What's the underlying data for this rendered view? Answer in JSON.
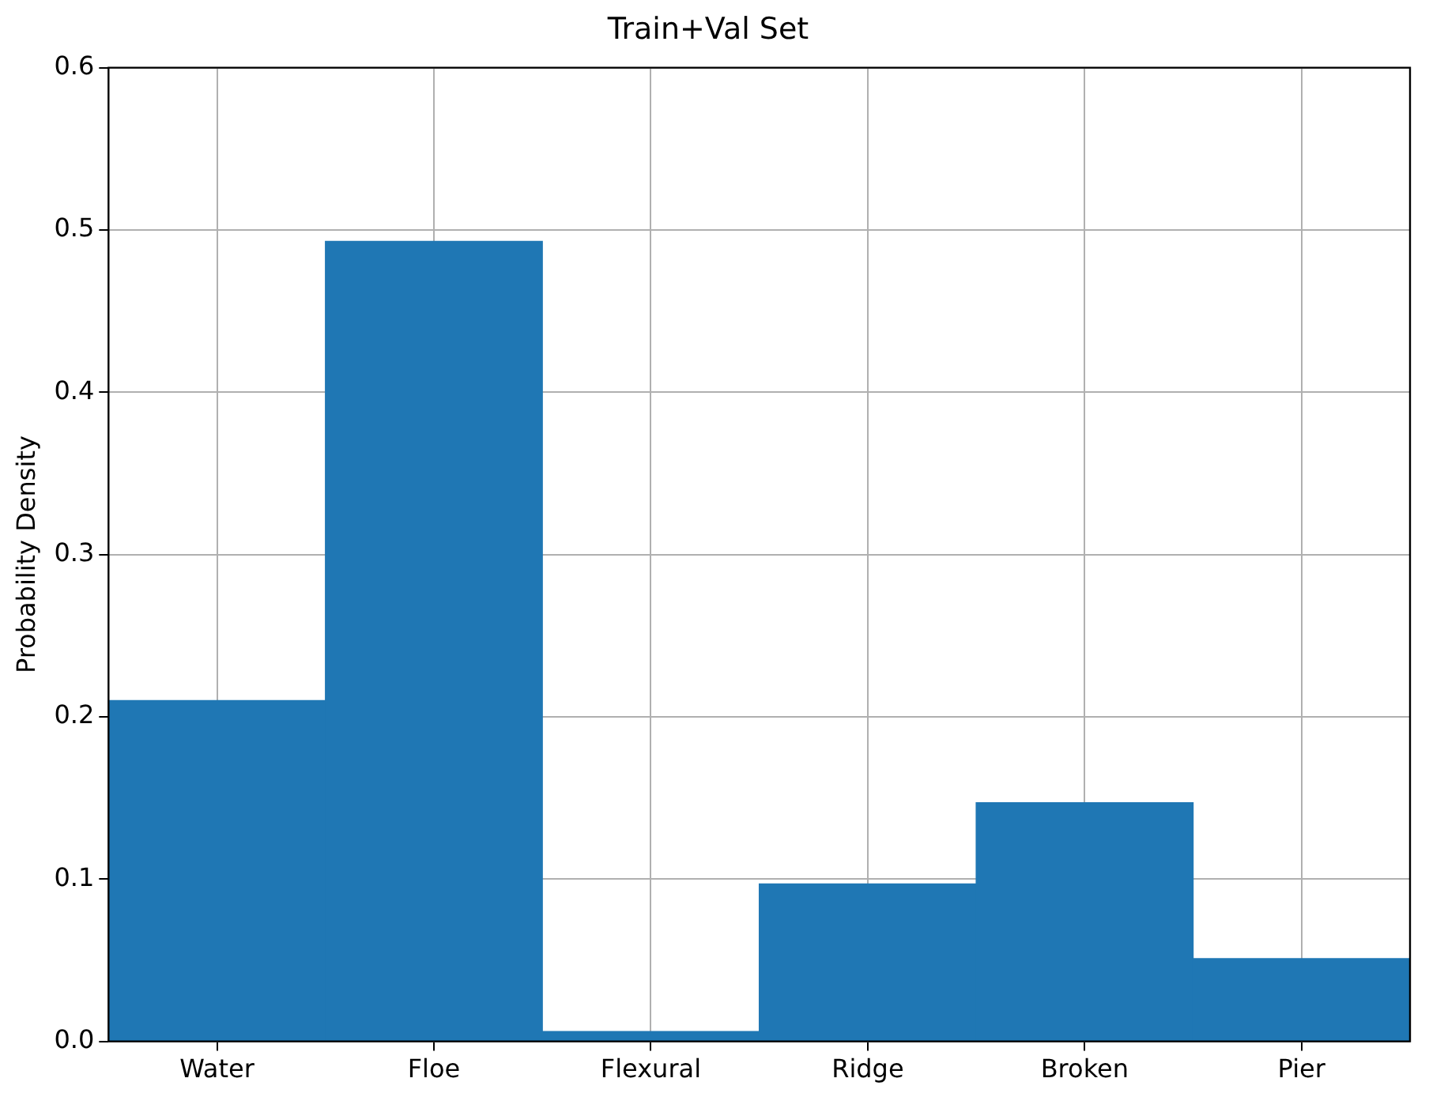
{
  "chart_data": {
    "type": "bar",
    "title": "Train+Val Set",
    "ylabel": "Probability Density",
    "categories": [
      "Water",
      "Floe",
      "Flexural",
      "Ridge",
      "Broken",
      "Pier"
    ],
    "values": [
      0.21,
      0.493,
      0.006,
      0.097,
      0.147,
      0.051
    ],
    "color": "#1f77b4",
    "ylim": [
      0,
      0.6
    ],
    "yticks": [
      {
        "value": 0,
        "label": "0.0"
      },
      {
        "value": 0.1,
        "label": "0.1"
      },
      {
        "value": 0.2,
        "label": "0.2"
      },
      {
        "value": 0.3,
        "label": "0.3"
      },
      {
        "value": 0.4,
        "label": "0.4"
      },
      {
        "value": 0.5,
        "label": "0.5"
      },
      {
        "value": 0.6,
        "label": "0.6"
      }
    ],
    "grid": true
  }
}
